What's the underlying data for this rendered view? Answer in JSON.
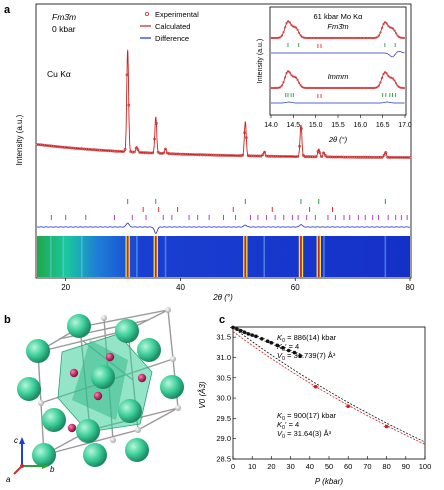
{
  "panel_labels": {
    "a": "a",
    "b": "b",
    "c": "c"
  },
  "colors": {
    "experimental": "#c83232",
    "calculated": "#cc2222",
    "difference": "#1f2fc8",
    "tick_green": "#2e9e3e",
    "tick_red": "#e03030",
    "tick_purple": "#b040c8",
    "crystal_atom": "#3ccf9a",
    "crystal_small": "#c42a6a",
    "model_black": "#111111",
    "model_red": "#d02020"
  },
  "chart_data": [
    {
      "id": "xrd-main",
      "type": "line",
      "xlabel": "2θ (°)",
      "ylabel": "Intensity (a.u.)",
      "xlim": [
        15,
        80
      ],
      "xticks": [
        20,
        40,
        60,
        80
      ],
      "phase_text": "Fm3̄m",
      "pressure_text": "0 kbar",
      "radiation_text": "Cu Kα",
      "legend": {
        "placement": "top-center",
        "entries": [
          {
            "label": "Experimental",
            "style": "markers",
            "color": "#c83232"
          },
          {
            "label": "Calculated",
            "style": "line",
            "color": "#cc2222"
          },
          {
            "label": "Difference",
            "style": "line",
            "color": "#1f2fc8"
          }
        ]
      },
      "peaks": [
        {
          "x": 30.8,
          "height": 0.9
        },
        {
          "x": 32.4,
          "height": 0.05
        },
        {
          "x": 35.7,
          "height": 0.32
        },
        {
          "x": 37.4,
          "height": 0.04
        },
        {
          "x": 51.3,
          "height": 0.3
        },
        {
          "x": 54.6,
          "height": 0.04
        },
        {
          "x": 61.0,
          "height": 0.28
        },
        {
          "x": 64.1,
          "height": 0.07
        },
        {
          "x": 65.0,
          "height": 0.04
        },
        {
          "x": 75.7,
          "height": 0.05
        }
      ],
      "tick_rows": [
        {
          "name": "green",
          "color": "#2e9e3e",
          "x": [
            30.8,
            35.7,
            51.3,
            61.0,
            64.1,
            75.7
          ]
        },
        {
          "name": "red",
          "color": "#e03030",
          "x": [
            33.5,
            36.2,
            39.5,
            49.2,
            56.0,
            62.5,
            66.5
          ]
        },
        {
          "name": "purple",
          "color": "#b040c8",
          "x": [
            17.5,
            20.0,
            23.5,
            28.5,
            31.6,
            34.0,
            37.0,
            38.5,
            41.5,
            43.0,
            45.0,
            47.5,
            49.6,
            52.2,
            53.5,
            55.0,
            56.5,
            58.0,
            59.5,
            60.5,
            62.0,
            63.5,
            65.7,
            67.0,
            68.5,
            69.5,
            71.0,
            72.2,
            73.5,
            74.5,
            76.2,
            77.5,
            78.5,
            79.5
          ]
        }
      ],
      "difference_features": [
        {
          "x": 30.8,
          "amplitude": 0.5
        },
        {
          "x": 35.7,
          "amplitude": -0.8
        },
        {
          "x": 51.3,
          "amplitude": 0.25
        },
        {
          "x": 61.0,
          "amplitude": 0.3
        }
      ]
    },
    {
      "id": "xrd-inset",
      "type": "line",
      "xlabel": "2θ (°)",
      "ylabel": "Intensity (a.u.)",
      "xlim": [
        14.0,
        17.0
      ],
      "xticks": [
        14.0,
        14.5,
        15.0,
        15.5,
        16.0,
        16.5,
        17.0
      ],
      "title": "61 kbar Mo Kα",
      "phases": [
        {
          "label": "Fm3̄m",
          "peaks": [
            {
              "x": 14.38,
              "height": 0.9
            },
            {
              "x": 14.55,
              "height": 0.55
            },
            {
              "x": 16.55,
              "height": 0.85
            },
            {
              "x": 16.72,
              "height": 0.5
            }
          ],
          "green_ticks": [
            14.38,
            14.62,
            16.55,
            16.78
          ],
          "red_ticks": [
            15.05,
            15.12
          ],
          "difference": [
            {
              "x": 16.72,
              "amplitude": -0.8
            },
            {
              "x": 16.85,
              "amplitude": 0.4
            }
          ]
        },
        {
          "label": "Immm",
          "peaks": [
            {
              "x": 14.38,
              "height": 0.9
            },
            {
              "x": 14.55,
              "height": 0.55
            },
            {
              "x": 16.55,
              "height": 0.85
            },
            {
              "x": 16.72,
              "height": 0.5
            }
          ],
          "green_ticks": [
            14.33,
            14.38,
            14.45,
            14.5,
            16.5,
            16.57,
            16.66,
            16.72,
            16.79
          ],
          "red_ticks": [
            15.05,
            15.12
          ],
          "difference": [
            {
              "x": 14.4,
              "amplitude": 0.2
            },
            {
              "x": 16.6,
              "amplitude": 0.2
            }
          ]
        }
      ]
    },
    {
      "id": "heatmap-stack",
      "type": "heatmap",
      "xlim": [
        15,
        80
      ],
      "bright_lines": [
        30.8,
        35.7,
        51.3,
        61.0,
        64.1
      ],
      "faint_lines": [
        17.4,
        19.6,
        22.8,
        32.4,
        37.4,
        54.6,
        65.0,
        75.7
      ]
    },
    {
      "id": "eos",
      "type": "scatter",
      "xlabel": "P (kbar)",
      "ylabel": "V0 (Å3)",
      "xlim": [
        0,
        100
      ],
      "ylim": [
        28.5,
        31.75
      ],
      "xticks": [
        0,
        10,
        20,
        30,
        40,
        50,
        60,
        70,
        80,
        90,
        100
      ],
      "yticks": [
        28.5,
        29.0,
        29.5,
        30.0,
        30.5,
        31.0,
        31.5
      ],
      "annotations": [
        {
          "lines": [
            {
              "prefix": "K",
              "sub": "0",
              "mid": "",
              "rest": " = 886(14) kbar"
            },
            {
              "prefix": "K",
              "sub": "0",
              "mid": "′",
              "rest": " = 4"
            },
            {
              "prefix": "V",
              "sub": "0",
              "mid": "",
              "rest": " = 31.739(7) Å³"
            }
          ],
          "placement": "upper"
        },
        {
          "lines": [
            {
              "prefix": "K",
              "sub": "0",
              "mid": "",
              "rest": " = 900(17) kbar"
            },
            {
              "prefix": "K",
              "sub": "0",
              "mid": "′",
              "rest": " = 4"
            },
            {
              "prefix": "V",
              "sub": "0",
              "mid": "",
              "rest": " = 31.64(3) Å³"
            }
          ],
          "placement": "lower"
        }
      ],
      "series": [
        {
          "name": "",
          "color": "#111111",
          "marker": "circle",
          "points": [
            [
              0,
              31.74
            ],
            [
              2,
              31.7
            ],
            [
              4,
              31.66
            ],
            [
              6,
              31.62
            ],
            [
              8,
              31.58
            ],
            [
              10,
              31.55
            ],
            [
              12,
              31.52
            ],
            [
              15,
              31.46
            ],
            [
              18,
              31.4
            ],
            [
              20,
              31.36
            ],
            [
              23,
              31.3
            ],
            [
              26,
              31.24
            ],
            [
              29,
              31.17
            ],
            [
              32,
              31.12
            ],
            [
              35,
              31.04
            ]
          ]
        },
        {
          "name": "",
          "color": "#d02020",
          "marker": "circle",
          "points": [
            [
              43,
              30.28
            ],
            [
              60,
              29.8
            ],
            [
              80,
              29.3
            ]
          ]
        }
      ],
      "fits": [
        {
          "K0": 886,
          "V0": 31.739,
          "Kp": 4,
          "range": [
            0,
            100
          ],
          "color": "#111111"
        },
        {
          "K0": 900,
          "V0": 31.64,
          "Kp": 4,
          "range": [
            0,
            100
          ],
          "color": "#d02020"
        }
      ]
    }
  ],
  "crystal": {
    "axes": {
      "a": "a",
      "b": "b",
      "c": "c"
    }
  }
}
